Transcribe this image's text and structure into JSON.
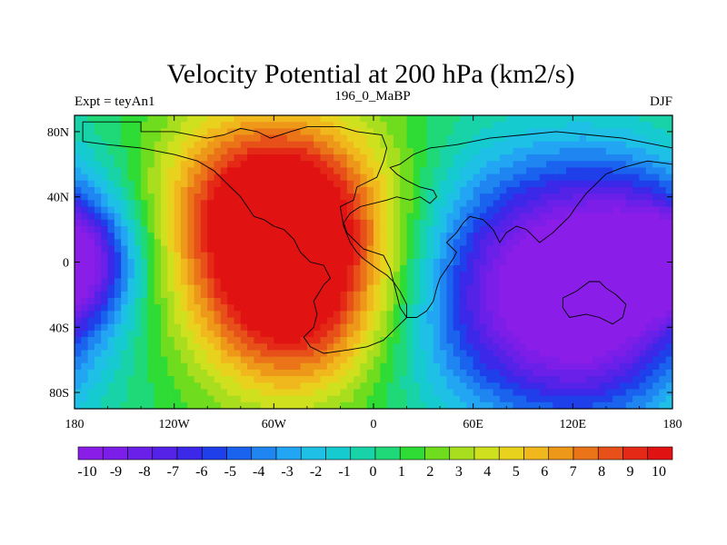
{
  "chart_data": {
    "type": "heatmap",
    "title": "Velocity Potential at 200 hPa (km2/s)",
    "left_label": "Expt = teyAn1",
    "center_label": "196_0_MaBP",
    "right_label": "DJF",
    "x_ticks": [
      "180",
      "120W",
      "60W",
      "0",
      "60E",
      "120E",
      "180"
    ],
    "x_tick_values": [
      -180,
      -120,
      -60,
      0,
      60,
      120,
      180
    ],
    "y_ticks": [
      "80N",
      "40N",
      "0",
      "40S",
      "80S"
    ],
    "y_tick_values": [
      80,
      40,
      0,
      -40,
      -80
    ],
    "lon_range": [
      -180,
      180
    ],
    "lat_range": [
      -90,
      90
    ],
    "colorbar_labels": [
      "-10",
      "-9",
      "-8",
      "-7",
      "-6",
      "-5",
      "-4",
      "-3",
      "-2",
      "-1",
      "0",
      "1",
      "2",
      "3",
      "4",
      "5",
      "6",
      "7",
      "8",
      "9",
      "10"
    ],
    "colorbar_colors": [
      "#8a1ee8",
      "#7d1ee8",
      "#6a20e8",
      "#5523e8",
      "#3b28e8",
      "#1f3fea",
      "#1a63ee",
      "#1f86f1",
      "#22a6f3",
      "#1ec0e6",
      "#16cbd0",
      "#19d3a8",
      "#1fd877",
      "#2fdb35",
      "#6fdc1e",
      "#a8de1e",
      "#cfe01f",
      "#e8d21e",
      "#f0b81c",
      "#ee981a",
      "#eb7419",
      "#e75018",
      "#e42a16",
      "#e01212"
    ],
    "field_centers": [
      {
        "lon": -45,
        "lat": 10,
        "value": 10.5,
        "radius": 50
      },
      {
        "lon": -70,
        "lat": 40,
        "value": 5,
        "radius": 40
      },
      {
        "lon": -50,
        "lat": -40,
        "value": 4,
        "radius": 35
      },
      {
        "lon": 90,
        "lat": -15,
        "value": -10.5,
        "radius": 55
      },
      {
        "lon": 150,
        "lat": 20,
        "value": -5,
        "radius": 40
      },
      {
        "lon": 140,
        "lat": -50,
        "value": -5,
        "radius": 40
      },
      {
        "lon": -175,
        "lat": 0,
        "value": -4,
        "radius": 25
      },
      {
        "lon": 175,
        "lat": 0,
        "value": -4,
        "radius": 25
      }
    ],
    "field_base": 1.0,
    "coastlines": [
      {
        "name": "americas",
        "points": [
          [
            -175,
            86
          ],
          [
            -140,
            86
          ],
          [
            -140,
            80
          ],
          [
            -120,
            80
          ],
          [
            -100,
            76
          ],
          [
            -90,
            78
          ],
          [
            -80,
            82
          ],
          [
            -70,
            80
          ],
          [
            -62,
            76
          ],
          [
            -50,
            80
          ],
          [
            -40,
            83
          ],
          [
            -20,
            83
          ],
          [
            -10,
            80
          ],
          [
            5,
            78
          ],
          [
            8,
            70
          ],
          [
            6,
            62
          ],
          [
            2,
            52
          ],
          [
            -10,
            46
          ],
          [
            -12,
            38
          ],
          [
            -20,
            34
          ],
          [
            -18,
            22
          ],
          [
            -14,
            12
          ],
          [
            -10,
            6
          ],
          [
            -6,
            2
          ],
          [
            2,
            -4
          ],
          [
            8,
            -8
          ],
          [
            12,
            -12
          ],
          [
            16,
            -18
          ],
          [
            20,
            -26
          ],
          [
            20,
            -34
          ],
          [
            14,
            -40
          ],
          [
            6,
            -48
          ],
          [
            -4,
            -52
          ],
          [
            -16,
            -54
          ],
          [
            -30,
            -56
          ],
          [
            -38,
            -52
          ],
          [
            -42,
            -46
          ],
          [
            -36,
            -40
          ],
          [
            -34,
            -32
          ],
          [
            -36,
            -24
          ],
          [
            -30,
            -14
          ],
          [
            -26,
            -10
          ],
          [
            -30,
            -2
          ],
          [
            -38,
            0
          ],
          [
            -44,
            6
          ],
          [
            -48,
            14
          ],
          [
            -54,
            20
          ],
          [
            -60,
            22
          ],
          [
            -66,
            26
          ],
          [
            -72,
            28
          ],
          [
            -76,
            34
          ],
          [
            -80,
            40
          ],
          [
            -86,
            46
          ],
          [
            -90,
            50
          ],
          [
            -96,
            56
          ],
          [
            -106,
            62
          ],
          [
            -120,
            66
          ],
          [
            -140,
            70
          ],
          [
            -160,
            72
          ],
          [
            -175,
            74
          ],
          [
            -175,
            86
          ]
        ]
      },
      {
        "name": "eurasia_africa",
        "points": [
          [
            16,
            60
          ],
          [
            24,
            66
          ],
          [
            34,
            70
          ],
          [
            50,
            72
          ],
          [
            70,
            76
          ],
          [
            90,
            78
          ],
          [
            110,
            80
          ],
          [
            130,
            78
          ],
          [
            150,
            76
          ],
          [
            170,
            72
          ],
          [
            180,
            70
          ],
          [
            180,
            60
          ],
          [
            165,
            62
          ],
          [
            150,
            58
          ],
          [
            140,
            54
          ],
          [
            134,
            48
          ],
          [
            128,
            42
          ],
          [
            122,
            34
          ],
          [
            118,
            28
          ],
          [
            112,
            22
          ],
          [
            108,
            18
          ],
          [
            100,
            12
          ],
          [
            96,
            16
          ],
          [
            92,
            20
          ],
          [
            86,
            22
          ],
          [
            80,
            18
          ],
          [
            76,
            12
          ],
          [
            72,
            20
          ],
          [
            66,
            26
          ],
          [
            58,
            28
          ],
          [
            54,
            24
          ],
          [
            50,
            18
          ],
          [
            44,
            12
          ],
          [
            50,
            6
          ],
          [
            48,
            2
          ],
          [
            44,
            -4
          ],
          [
            40,
            -10
          ],
          [
            38,
            -16
          ],
          [
            36,
            -24
          ],
          [
            32,
            -30
          ],
          [
            26,
            -34
          ],
          [
            20,
            -34
          ],
          [
            16,
            -28
          ],
          [
            14,
            -20
          ],
          [
            12,
            -12
          ],
          [
            10,
            -4
          ],
          [
            8,
            0
          ],
          [
            6,
            4
          ],
          [
            0,
            6
          ],
          [
            -6,
            8
          ],
          [
            -10,
            12
          ],
          [
            -16,
            18
          ],
          [
            -18,
            24
          ],
          [
            -14,
            30
          ],
          [
            -8,
            34
          ],
          [
            0,
            36
          ],
          [
            8,
            38
          ],
          [
            14,
            40
          ],
          [
            22,
            38
          ],
          [
            28,
            40
          ],
          [
            34,
            36
          ],
          [
            38,
            40
          ],
          [
            36,
            44
          ],
          [
            28,
            46
          ],
          [
            20,
            50
          ],
          [
            14,
            54
          ],
          [
            10,
            58
          ],
          [
            16,
            60
          ]
        ]
      },
      {
        "name": "australia",
        "points": [
          [
            114,
            -22
          ],
          [
            122,
            -18
          ],
          [
            130,
            -12
          ],
          [
            136,
            -12
          ],
          [
            140,
            -16
          ],
          [
            146,
            -20
          ],
          [
            152,
            -26
          ],
          [
            150,
            -34
          ],
          [
            144,
            -38
          ],
          [
            136,
            -34
          ],
          [
            128,
            -32
          ],
          [
            118,
            -34
          ],
          [
            114,
            -28
          ],
          [
            114,
            -22
          ]
        ]
      }
    ]
  }
}
